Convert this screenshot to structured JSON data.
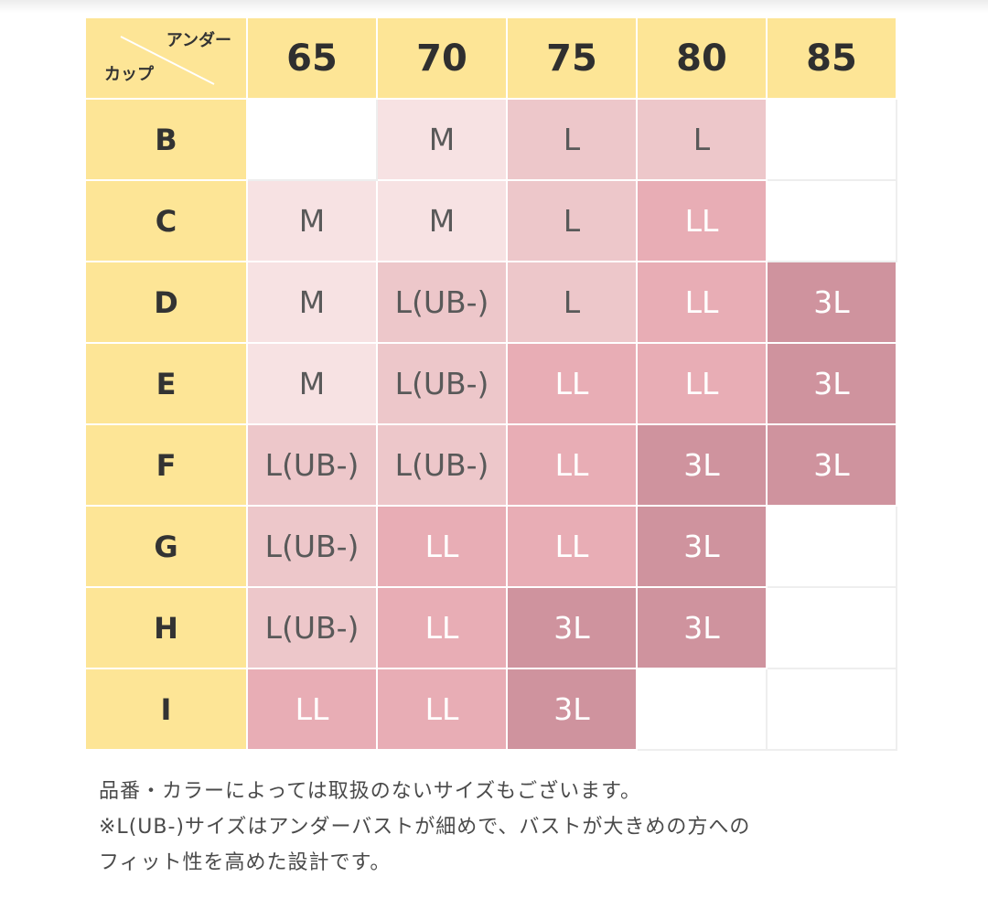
{
  "table": {
    "corner": {
      "under_label": "アンダー",
      "cup_label": "カップ"
    },
    "columns": [
      "65",
      "70",
      "75",
      "80",
      "85"
    ],
    "rows": [
      {
        "cup": "B",
        "cells": [
          "",
          "M",
          "L",
          "L",
          ""
        ],
        "levels": [
          -1,
          0,
          1,
          1,
          -1
        ]
      },
      {
        "cup": "C",
        "cells": [
          "M",
          "M",
          "L",
          "LL",
          ""
        ],
        "levels": [
          0,
          0,
          1,
          2,
          -1
        ]
      },
      {
        "cup": "D",
        "cells": [
          "M",
          "L(UB-)",
          "L",
          "LL",
          "3L"
        ],
        "levels": [
          0,
          1,
          1,
          2,
          3
        ]
      },
      {
        "cup": "E",
        "cells": [
          "M",
          "L(UB-)",
          "LL",
          "LL",
          "3L"
        ],
        "levels": [
          0,
          1,
          2,
          2,
          3
        ]
      },
      {
        "cup": "F",
        "cells": [
          "L(UB-)",
          "L(UB-)",
          "LL",
          "3L",
          "3L"
        ],
        "levels": [
          1,
          1,
          2,
          3,
          3
        ]
      },
      {
        "cup": "G",
        "cells": [
          "L(UB-)",
          "LL",
          "LL",
          "3L",
          ""
        ],
        "levels": [
          1,
          2,
          2,
          3,
          -1
        ]
      },
      {
        "cup": "H",
        "cells": [
          "L(UB-)",
          "LL",
          "3L",
          "3L",
          ""
        ],
        "levels": [
          1,
          2,
          3,
          3,
          -1
        ]
      },
      {
        "cup": "I",
        "cells": [
          "LL",
          "LL",
          "3L",
          "",
          ""
        ],
        "levels": [
          2,
          2,
          3,
          -1,
          -1
        ]
      }
    ]
  },
  "notes": [
    "品番・カラーによっては取扱のないサイズもございます。",
    "※L(UB-)サイズはアンダーバストが細めで、バストが大きめの方への",
    "フィット性を高めた設計です。"
  ],
  "colors": {
    "header": "#fde596",
    "level0": "#f7e2e3",
    "level1": "#edc7ca",
    "level2": "#e8adb5",
    "level3": "#cf939e"
  }
}
